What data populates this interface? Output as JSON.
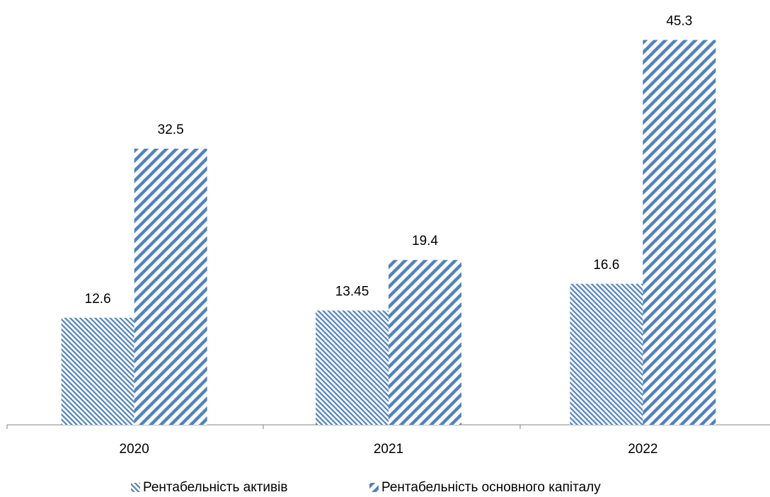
{
  "chart_data": {
    "type": "bar",
    "categories": [
      "2020",
      "2021",
      "2022"
    ],
    "series": [
      {
        "name": "Рентабельність активів",
        "color": "#4f81bd",
        "values": [
          12.6,
          13.45,
          16.6
        ]
      },
      {
        "name": "Рентабельність основного капіталу",
        "color": "#4f81bd",
        "values": [
          32.5,
          19.4,
          45.3
        ]
      }
    ],
    "ylim": [
      0,
      50
    ],
    "legend": "bottom"
  }
}
